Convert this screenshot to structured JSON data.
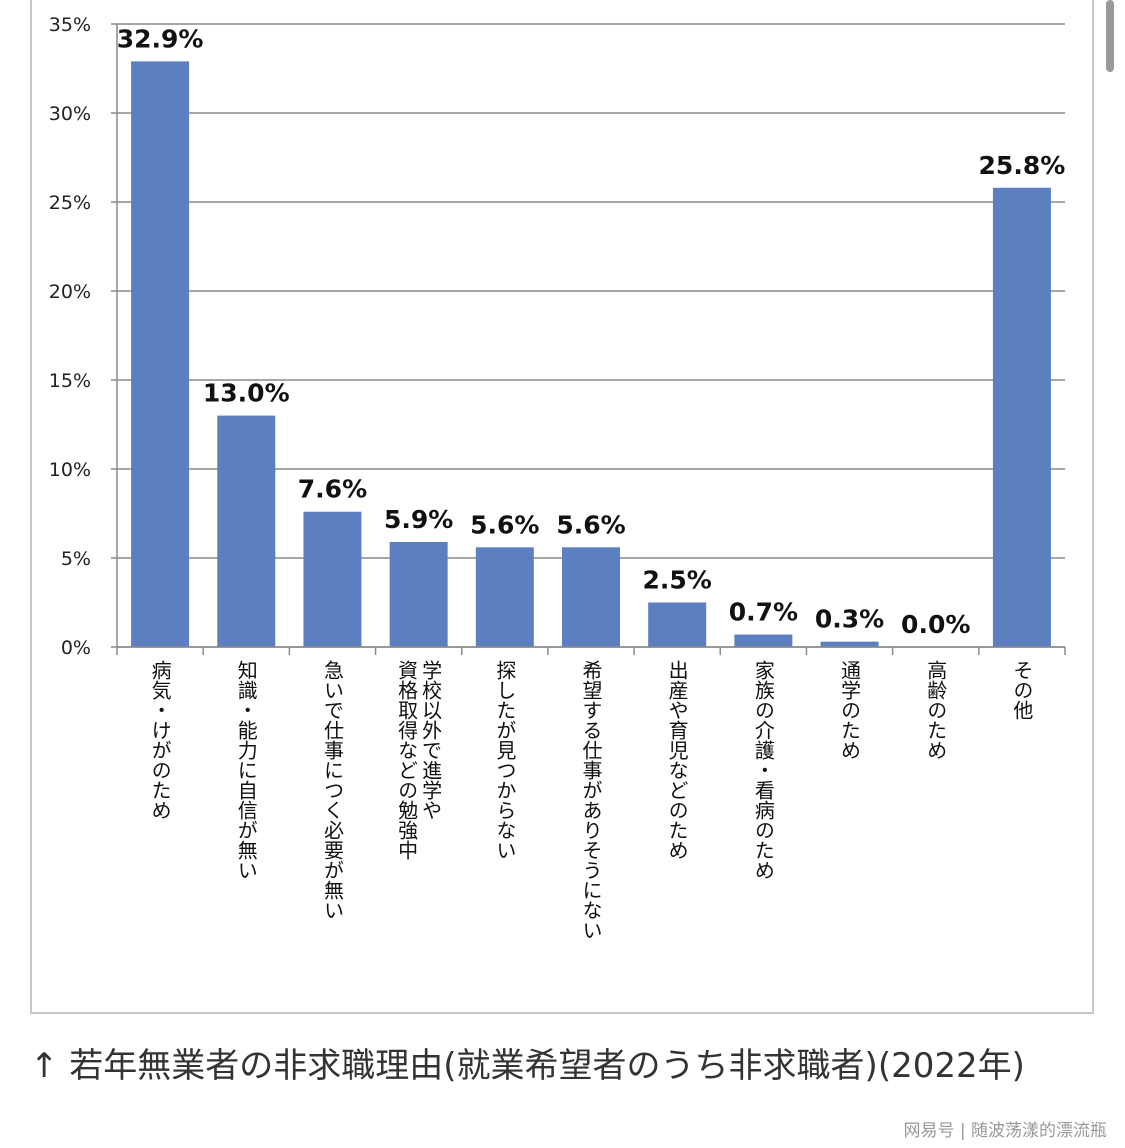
{
  "chart_data": {
    "type": "bar",
    "categories": [
      "病気・けがのため",
      "知識・能力に自信が無い",
      "急いで仕事につく必要が無い",
      "学校以外で進学や\n資格取得などの勉強中",
      "探したが見つからない",
      "希望する仕事がありそうにない",
      "出産や育児などのため",
      "家族の介護・看病のため",
      "通学のため",
      "高齢のため",
      "その他"
    ],
    "values": [
      32.9,
      13.0,
      7.6,
      5.9,
      5.6,
      5.6,
      2.5,
      0.7,
      0.3,
      0.0,
      25.8
    ],
    "data_labels": [
      "32.9%",
      "13.0%",
      "7.6%",
      "5.9%",
      "5.6%",
      "5.6%",
      "2.5%",
      "0.7%",
      "0.3%",
      "0.0%",
      "25.8%"
    ],
    "yticks": [
      "0%",
      "5%",
      "10%",
      "15%",
      "20%",
      "25%",
      "30%",
      "35%"
    ],
    "ylim": [
      0,
      35
    ],
    "grid": true,
    "bar_color": "#5b7fbf"
  },
  "caption": "↑ 若年無業者の非求職理由(就業希望者のうち非求職者)(2022年)",
  "watermark": "网易号 | 随波荡漾的漂流瓶"
}
